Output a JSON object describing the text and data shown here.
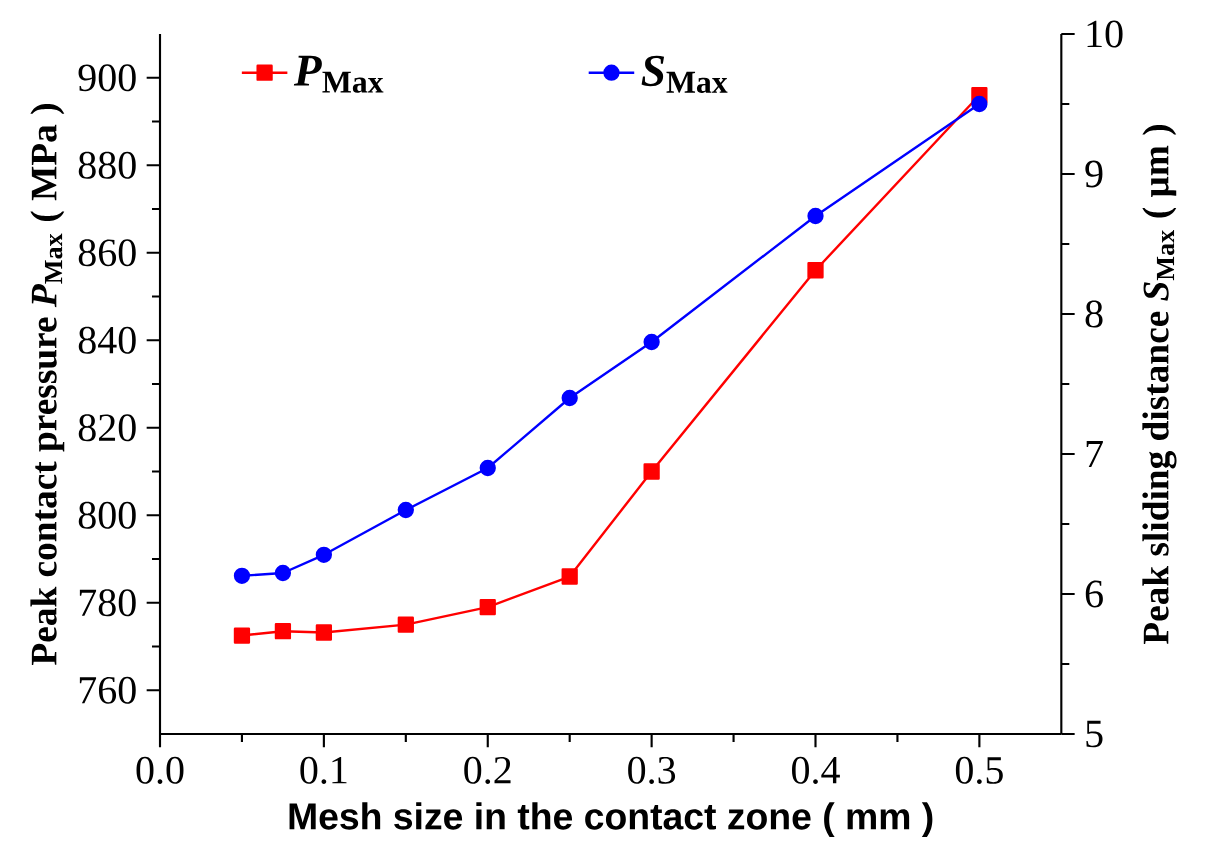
{
  "chart_data": {
    "type": "line",
    "xlabel": "Mesh size in the contact zone  ( mm )",
    "ylabel": "Peak contact pressure *P*$_{Max}$ ( MPa )",
    "y2label": "Peak sliding distance *S*$_{Max}$ ( μm )",
    "x": [
      0.05,
      0.075,
      0.1,
      0.15,
      0.2,
      0.25,
      0.3,
      0.4,
      0.5
    ],
    "series": [
      {
        "name": "*P*$_{Max}$",
        "color": "#ff0000",
        "marker": "square",
        "values": [
          772.5,
          773.5,
          773.2,
          775,
          779,
          786,
          810,
          856,
          896
        ]
      },
      {
        "name": "*S*$_{Max}$",
        "color": "#0000ff",
        "marker": "circle",
        "axis": "y2",
        "values": [
          6.13,
          6.15,
          6.28,
          6.6,
          6.9,
          7.4,
          7.8,
          8.7,
          9.5
        ]
      }
    ],
    "xlim": [
      0,
      0.55
    ],
    "xticks": [
      {
        "value": 0,
        "label": "0.0"
      },
      0.1,
      0.2,
      0.3,
      0.4,
      0.5
    ],
    "ylim": [
      750,
      910
    ],
    "yticks": [
      760,
      780,
      800,
      820,
      840,
      860,
      880,
      900
    ],
    "y2lim": [
      5,
      10
    ],
    "y2ticks": [
      5,
      6,
      7,
      8,
      9,
      10
    ],
    "legend": "top",
    "grid": false,
    "line_style": "solid"
  }
}
